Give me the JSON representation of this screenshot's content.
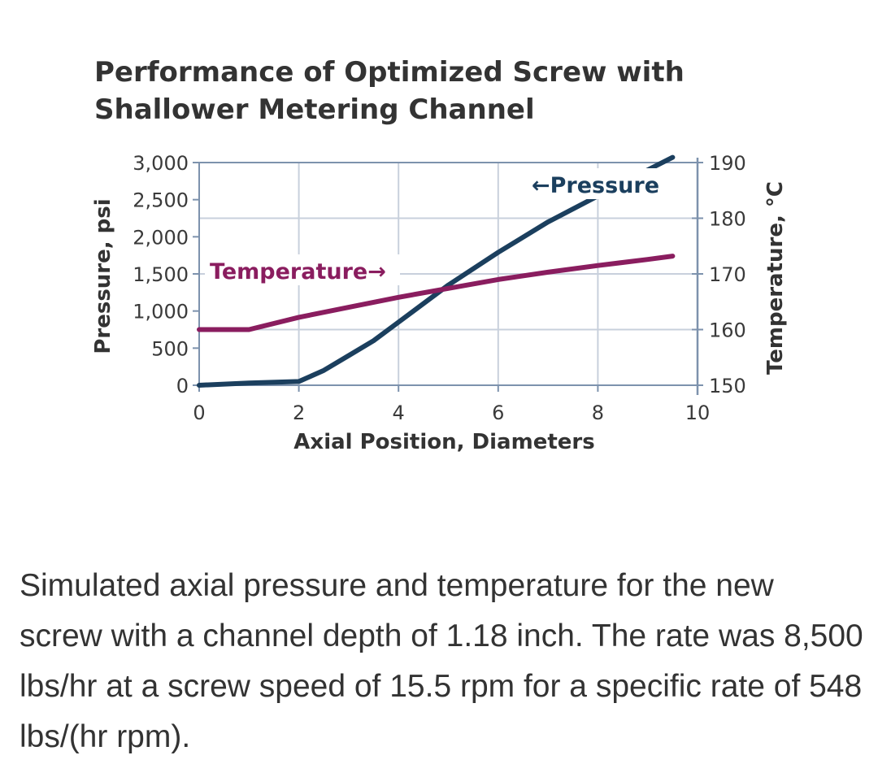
{
  "chart_data": {
    "type": "line",
    "title_lines": [
      "Performance of Optimized Screw with",
      "Shallower Metering Channel"
    ],
    "xlabel": "Axial Position, Diameters",
    "ylabel_left": "Pressure, psi",
    "ylabel_right": "Temperature, °C",
    "xlim": [
      0,
      10
    ],
    "ylim_left": [
      0,
      3000
    ],
    "ylim_right": [
      150,
      190
    ],
    "x_ticks": [
      0,
      2,
      4,
      6,
      8,
      10
    ],
    "x_tick_labels": [
      "0",
      "2",
      "4",
      "6",
      "8",
      "10"
    ],
    "y_left_ticks": [
      0,
      500,
      1000,
      1500,
      2000,
      2500,
      3000
    ],
    "y_left_tick_labels": [
      "0",
      "500",
      "1,000",
      "1,500",
      "2,000",
      "2,500",
      "3,000"
    ],
    "y_right_ticks": [
      150,
      160,
      170,
      180,
      190
    ],
    "y_right_tick_labels": [
      "150",
      "160",
      "170",
      "180",
      "190"
    ],
    "grid": true,
    "colors": {
      "pressure": "#1b3f5e",
      "temperature": "#8a1d5f",
      "grid": "#c8d0dc",
      "axis": "#7d92ad"
    },
    "series": [
      {
        "name": "Pressure",
        "axis": "left",
        "annotation": "←Pressure",
        "x": [
          0,
          1,
          2,
          2.5,
          3,
          3.5,
          4,
          5,
          6,
          7,
          8,
          9,
          9.5
        ],
        "y": [
          0,
          30,
          50,
          200,
          400,
          600,
          850,
          1350,
          1790,
          2200,
          2550,
          2900,
          3070
        ]
      },
      {
        "name": "Temperature",
        "axis": "right",
        "annotation": "Temperature→",
        "x": [
          0,
          1,
          2,
          3,
          4,
          5,
          6,
          7,
          8,
          9,
          9.5
        ],
        "y": [
          160,
          160,
          162.2,
          164,
          165.8,
          167.4,
          169,
          170.3,
          171.5,
          172.6,
          173.2
        ]
      }
    ]
  },
  "caption": "Simulated axial pressure and temperature for the new screw with a channel depth of 1.18 inch. The rate was 8,500 lbs/hr at a screw speed of 15.5 rpm for a specific rate of 548 lbs/(hr rpm)."
}
